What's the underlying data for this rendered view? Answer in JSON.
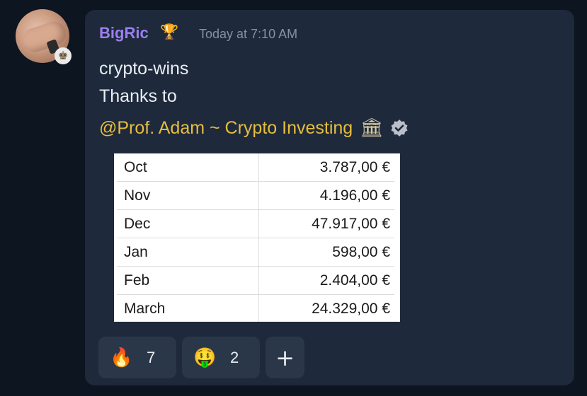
{
  "message": {
    "username": "BigRic",
    "badge_icon": "trophy-icon",
    "timestamp": "Today at 7:10 AM",
    "lines": [
      "crypto-wins",
      "Thanks to"
    ],
    "mention": "@Prof. Adam ~ Crypto Investing",
    "mention_icons": [
      "bank-icon",
      "verified-icon"
    ]
  },
  "table": {
    "rows": [
      {
        "month": "Oct",
        "value": "3.787,00 €"
      },
      {
        "month": "Nov",
        "value": "4.196,00 €"
      },
      {
        "month": "Dec",
        "value": "47.917,00 €"
      },
      {
        "month": "Jan",
        "value": "598,00 €"
      },
      {
        "month": "Feb",
        "value": "2.404,00 €"
      },
      {
        "month": "March",
        "value": "24.329,00 €"
      }
    ]
  },
  "reactions": [
    {
      "icon": "fire-icon",
      "glyph": "🔥",
      "count": "7"
    },
    {
      "icon": "money-mouth-icon",
      "glyph": "🤑",
      "count": "2"
    }
  ],
  "add_reaction": "+",
  "colors": {
    "background": "#0d1520",
    "card": "#1e2a3b",
    "username": "#9b7ff0",
    "mention": "#e6bd3d",
    "reaction_bg": "#2a3749"
  }
}
